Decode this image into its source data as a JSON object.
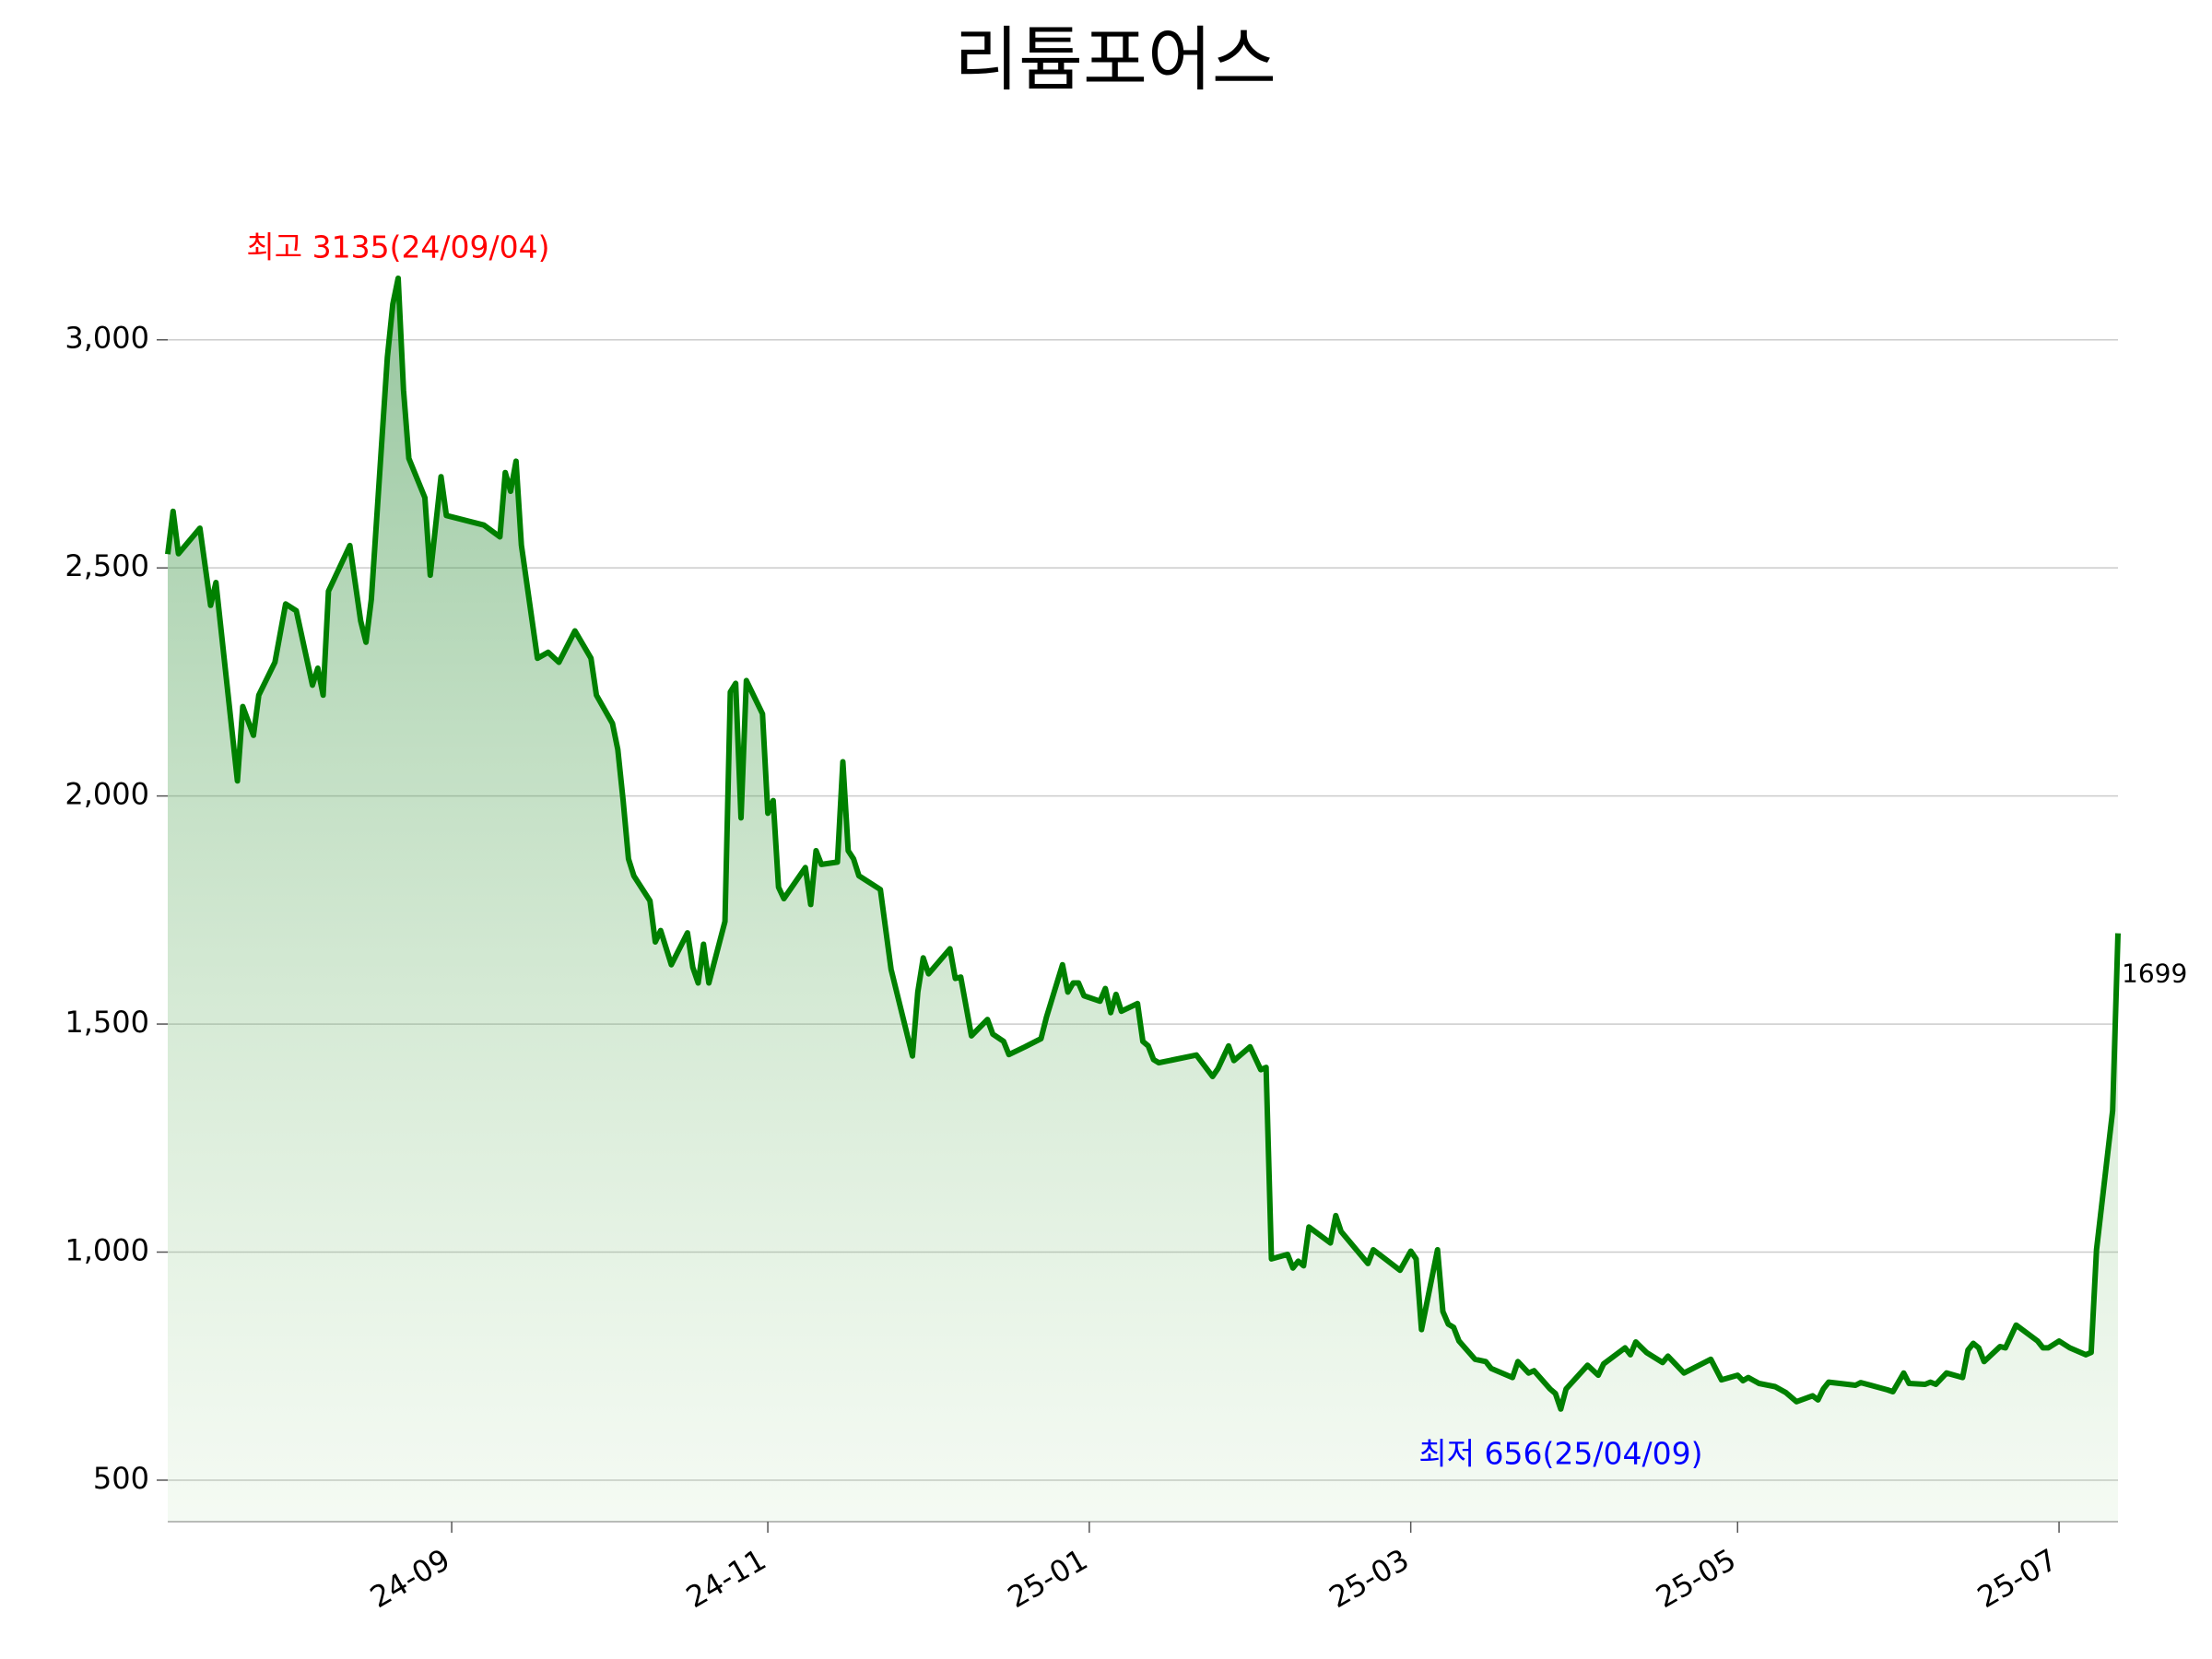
{
  "chart_data": {
    "type": "area",
    "title": "리튬포어스",
    "x": [
      "24-07-23",
      "24-07-24",
      "24-07-25",
      "24-07-29",
      "24-07-31",
      "24-08-01",
      "24-08-05",
      "24-08-06",
      "24-08-08",
      "24-08-09",
      "24-08-12",
      "24-08-14",
      "24-08-16",
      "24-08-19",
      "24-08-20",
      "24-08-21",
      "24-08-22",
      "24-08-26",
      "24-08-28",
      "24-08-29",
      "24-08-30",
      "24-09-02",
      "24-09-03",
      "24-09-04",
      "24-09-05",
      "24-09-06",
      "24-09-09",
      "24-09-10",
      "24-09-12",
      "24-09-13",
      "24-09-20",
      "24-09-23",
      "24-09-24",
      "24-09-25",
      "24-09-26",
      "24-09-27",
      "24-09-30",
      "24-10-02",
      "24-10-04",
      "24-10-07",
      "24-10-10",
      "24-10-11",
      "24-10-14",
      "24-10-15",
      "24-10-16",
      "24-10-17",
      "24-10-18",
      "24-10-21",
      "24-10-22",
      "24-10-23",
      "24-10-25",
      "24-10-28",
      "24-10-29",
      "24-10-30",
      "24-10-31",
      "24-11-01",
      "24-11-04",
      "24-11-05",
      "24-11-06",
      "24-11-07",
      "24-11-08",
      "24-11-11",
      "24-11-12",
      "24-11-13",
      "24-11-14",
      "24-11-15",
      "24-11-19",
      "24-11-20",
      "24-11-21",
      "24-11-22",
      "24-11-25",
      "24-11-26",
      "24-11-27",
      "24-11-28",
      "24-11-29",
      "24-12-03",
      "24-12-05",
      "24-12-09",
      "24-12-10",
      "24-12-11",
      "24-12-12",
      "24-12-16",
      "24-12-17",
      "24-12-18",
      "24-12-20",
      "24-12-23",
      "24-12-24",
      "24-12-26",
      "24-12-27",
      "24-12-30",
      "25-01-02",
      "25-01-03",
      "25-01-06",
      "25-01-07",
      "25-01-08",
      "25-01-09",
      "25-01-10",
      "25-01-13",
      "25-01-14",
      "25-01-15",
      "25-01-16",
      "25-01-17",
      "25-01-20",
      "25-01-21",
      "25-01-22",
      "25-01-23",
      "25-01-24",
      "25-01-31",
      "25-02-03",
      "25-02-04",
      "25-02-06",
      "25-02-07",
      "25-02-10",
      "25-02-12",
      "25-02-13",
      "25-02-14",
      "25-02-17",
      "25-02-18",
      "25-02-19",
      "25-02-20",
      "25-02-21",
      "25-02-25",
      "25-02-26",
      "25-02-27",
      "25-03-04",
      "25-03-05",
      "25-03-10",
      "25-03-12",
      "25-03-13",
      "25-03-14",
      "25-03-17",
      "25-03-18",
      "25-03-19",
      "25-03-20",
      "25-03-21",
      "25-03-24",
      "25-03-26",
      "25-03-27",
      "25-03-31",
      "25-04-01",
      "25-04-03",
      "25-04-04",
      "25-04-07",
      "25-04-08",
      "25-04-09",
      "25-04-10",
      "25-04-14",
      "25-04-16",
      "25-04-17",
      "25-04-21",
      "25-04-22",
      "25-04-23",
      "25-04-25",
      "25-04-28",
      "25-04-29",
      "25-05-02",
      "25-05-07",
      "25-05-09",
      "25-05-12",
      "25-05-13",
      "25-05-14",
      "25-05-16",
      "25-05-19",
      "25-05-21",
      "25-05-23",
      "25-05-26",
      "25-05-27",
      "25-05-28",
      "25-05-29",
      "25-06-03",
      "25-06-04",
      "25-06-09",
      "25-06-10",
      "25-06-12",
      "25-06-13",
      "25-06-16",
      "25-06-17",
      "25-06-18",
      "25-06-20",
      "25-06-23",
      "25-06-24",
      "25-06-25",
      "25-06-26",
      "25-06-27",
      "25-06-30",
      "25-07-01",
      "25-07-03",
      "25-07-07",
      "25-07-08",
      "25-07-09",
      "25-07-11",
      "25-07-13",
      "25-07-16",
      "25-07-17",
      "25-07-18",
      "25-07-21",
      "25-07-22"
    ],
    "series": [
      {
        "color": "#008000",
        "values": [
          2530,
          2624,
          2531,
          2587,
          2418,
          2468,
          2033,
          2196,
          2133,
          2221,
          2293,
          2421,
          2406,
          2243,
          2280,
          2221,
          2449,
          2549,
          2384,
          2337,
          2431,
          2962,
          3078,
          3135,
          2890,
          2740,
          2654,
          2484,
          2700,
          2615,
          2594,
          2568,
          2709,
          2668,
          2734,
          2550,
          2302,
          2315,
          2293,
          2362,
          2302,
          2221,
          2159,
          2102,
          1990,
          1862,
          1825,
          1770,
          1680,
          1705,
          1630,
          1700,
          1624,
          1590,
          1675,
          1590,
          1725,
          2228,
          2247,
          1952,
          2253,
          2180,
          1962,
          1990,
          1800,
          1775,
          1843,
          1762,
          1880,
          1850,
          1855,
          2075,
          1880,
          1862,
          1825,
          1795,
          1620,
          1430,
          1570,
          1645,
          1610,
          1665,
          1600,
          1603,
          1474,
          1510,
          1478,
          1462,
          1433,
          1450,
          1468,
          1515,
          1630,
          1570,
          1590,
          1590,
          1562,
          1550,
          1578,
          1525,
          1565,
          1528,
          1545,
          1462,
          1452,
          1422,
          1415,
          1432,
          1385,
          1402,
          1452,
          1420,
          1450,
          1400,
          1405,
          985,
          995,
          965,
          980,
          970,
          1055,
          1020,
          1080,
          1045,
          975,
          1005,
          960,
          1002,
          985,
          830,
          1005,
          870,
          842,
          835,
          805,
          765,
          760,
          745,
          725,
          760,
          735,
          740,
          700,
          690,
          656,
          700,
          752,
          730,
          755,
          790,
          775,
          803,
          780,
          758,
          772,
          735,
          765,
          720,
          730,
          718,
          725,
          712,
          705,
          692,
          672,
          685,
          676,
          700,
          715,
          708,
          714,
          698,
          694,
          735,
          712,
          710,
          715,
          710,
          735,
          725,
          785,
          800,
          790,
          760,
          793,
          790,
          840,
          805,
          790,
          790,
          805,
          790,
          775,
          780,
          1005,
          1310,
          1699
        ]
      }
    ],
    "xlim": [
      "24-07-23",
      "25-07-22"
    ],
    "xticks": [
      {
        "value": "24-09-14",
        "label": "24-09"
      },
      {
        "value": "24-11-12",
        "label": "24-11"
      },
      {
        "value": "25-01-11",
        "label": "25-01"
      },
      {
        "value": "25-03-12",
        "label": "25-03"
      },
      {
        "value": "25-05-12",
        "label": "25-05"
      },
      {
        "value": "25-07-11",
        "label": "25-07"
      }
    ],
    "ylim": [
      409,
      3250
    ],
    "yticks": [
      500,
      {
        "value": 1000,
        "label": "1,000"
      },
      {
        "value": 1500,
        "label": "1,500"
      },
      {
        "value": 2000,
        "label": "2,000"
      },
      {
        "value": 2500,
        "label": "2,500"
      },
      {
        "value": 3000,
        "label": "3,000"
      }
    ],
    "grid": true,
    "annotations": [
      {
        "text": "최고 3135(24/09/04)",
        "x": "24-09-04",
        "y": 3135,
        "color": "#ff0000"
      },
      {
        "text": "최저 656(25/04/09)",
        "x": "25-04-09",
        "y": 656,
        "color": "#0000ff"
      },
      {
        "text": "1699",
        "x": "25-07-22",
        "y": 1699,
        "color": "#000000"
      }
    ]
  }
}
